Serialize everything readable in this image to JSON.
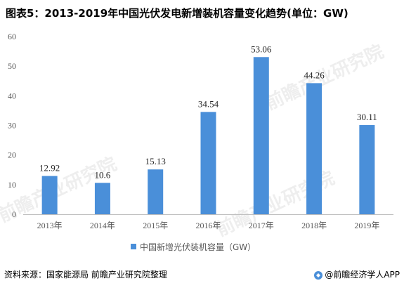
{
  "title": "图表5：2013-2019年中国光伏发电新增装机容量变化趋势(单位：GW)",
  "source": "资料来源：国家能源局 前瞻产业研究院整理",
  "brand": "@前瞻经济学人APP",
  "watermark": "前瞻产业研究院",
  "colors": {
    "bar": "#4a8fd9",
    "axis": "#bfbfbf"
  },
  "chart_data": {
    "type": "bar",
    "categories": [
      "2013年",
      "2014年",
      "2015年",
      "2016年",
      "2017年",
      "2018年",
      "2019年"
    ],
    "series": [
      {
        "name": "中国新增光伏装机容量（GW）",
        "values": [
          12.92,
          10.6,
          15.13,
          34.54,
          53.06,
          44.26,
          30.11
        ]
      }
    ],
    "data_labels": [
      "12.92",
      "10.6",
      "15.13",
      "34.54",
      "53.06",
      "44.26",
      "30.11"
    ],
    "ylim": [
      0,
      60
    ],
    "yticks": [
      0,
      10,
      20,
      30,
      40,
      50,
      60
    ],
    "grid": false,
    "legend": "bottom"
  }
}
